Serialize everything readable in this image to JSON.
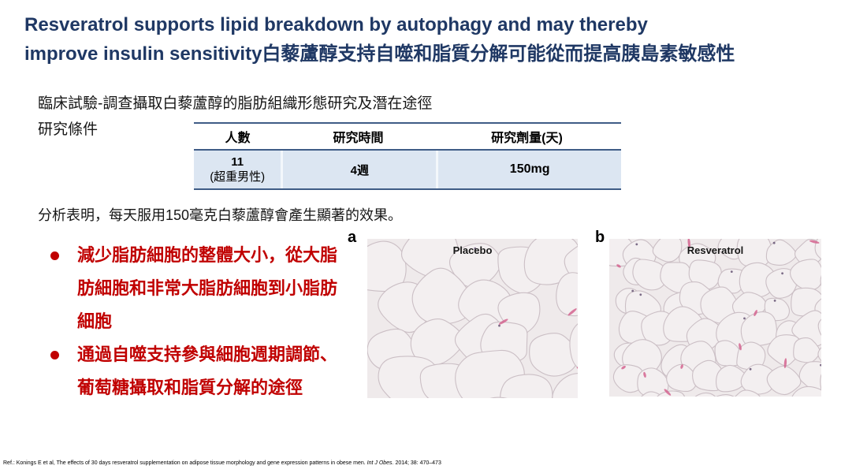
{
  "title": {
    "line1": "Resveratrol supports lipid breakdown by autophagy and may thereby",
    "line2_en": "improve insulin sensitivity",
    "line2_zh": "白藜蘆醇支持自噬和脂質分解可能從而提高胰島素敏感性"
  },
  "study": {
    "heading": "臨床試驗-調查攝取白藜蘆醇的脂肪組織形態研究及潛在途徑",
    "conditions_label": "研究條件",
    "table": {
      "headers": [
        "人數",
        "研究時間",
        "研究劑量(天)"
      ],
      "row": {
        "subjects": "11",
        "subjects_note": "(超重男性)",
        "duration": "4週",
        "dose": "150mg"
      }
    }
  },
  "analysis": "分析表明，每天服用150毫克白藜蘆醇會產生顯著的效果。",
  "bullets": [
    "減少脂肪細胞的整體大小，從大脂肪細胞和非常大脂肪細胞到小脂肪細胞",
    "通過自噬支持參與細胞週期調節、葡萄糖攝取和脂質分解的途徑"
  ],
  "figures": [
    {
      "panel": "a",
      "label": "Placebo"
    },
    {
      "panel": "b",
      "label": "Resveratrol"
    }
  ],
  "footer": {
    "pre": "Ref.: Konings E et al, The effects of 30 days resveratrol supplementation on adipose tissue morphology and gene expression patterns in obese men. ",
    "journal": "Int J Obes.",
    "post": " 2014; 38: 470–473"
  },
  "colors": {
    "title_navy": "#1f3864",
    "accent_red": "#c00000",
    "table_border_blue": "#3f5c86",
    "table_row_bg": "#dce6f2"
  }
}
